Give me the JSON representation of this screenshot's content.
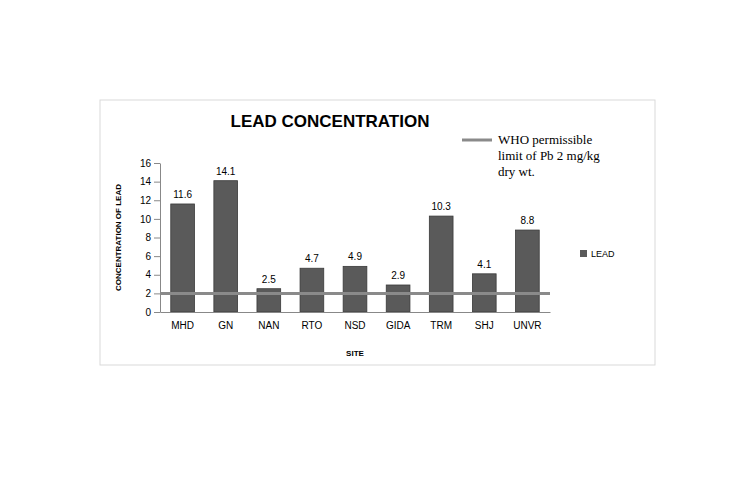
{
  "chart_data": {
    "type": "bar",
    "title": "LEAD CONCENTRATION",
    "x_label": "SITE",
    "y_label": "CONCENTRATION OF LEAD",
    "categories": [
      "MHD",
      "GN",
      "NAN",
      "RTO",
      "NSD",
      "GIDA",
      "TRM",
      "SHJ",
      "UNVR"
    ],
    "series": [
      {
        "name": "LEAD",
        "color": "#5a5a5a",
        "values": [
          11.6,
          14.1,
          2.5,
          4.7,
          4.9,
          2.9,
          10.3,
          4.1,
          8.8
        ]
      }
    ],
    "reference_line": {
      "name": "WHO permissible limit of Pb 2 mg/kg dry wt.",
      "value": 2,
      "color": "#8a8a8a"
    },
    "ylim": [
      0,
      16
    ],
    "yticks": [
      0,
      2,
      4,
      6,
      8,
      10,
      12,
      14,
      16
    ],
    "data_labels": true,
    "legend": "right",
    "grid": false
  }
}
